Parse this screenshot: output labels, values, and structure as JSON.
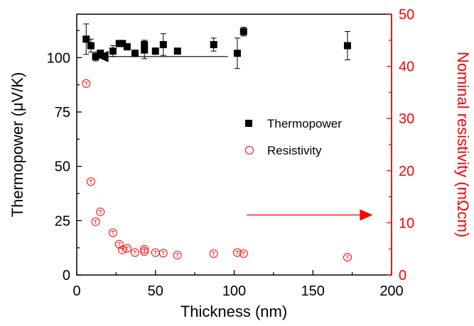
{
  "chart_data": {
    "type": "scatter",
    "xlabel": "Thickness (nm)",
    "ylabel_left": "Thermopower (μV/K)",
    "ylabel_right": "Nominal resistivity (mΩcm)",
    "xlim": [
      0,
      200
    ],
    "ylim_left": [
      0,
      120
    ],
    "ylim_right": [
      0,
      50
    ],
    "x_ticks": [
      0,
      50,
      100,
      150,
      200
    ],
    "y_left_ticks": [
      0,
      25,
      50,
      75,
      100
    ],
    "y_right_ticks": [
      0,
      10,
      20,
      30,
      40,
      50
    ],
    "grid": false,
    "legend_position": "center-right",
    "series": [
      {
        "name": "Thermopower",
        "axis": "left",
        "marker": "filled-square",
        "color": "#000000",
        "points": [
          {
            "x": 6,
            "y": 108.5,
            "err": 7
          },
          {
            "x": 9,
            "y": 105.5,
            "err": 3
          },
          {
            "x": 12,
            "y": 100.5,
            "err": 2
          },
          {
            "x": 15,
            "y": 102,
            "err": 1.5
          },
          {
            "x": 23,
            "y": 103,
            "err": 2.5
          },
          {
            "x": 27,
            "y": 106.5,
            "err": 1
          },
          {
            "x": 29,
            "y": 106.5,
            "err": 1
          },
          {
            "x": 32,
            "y": 105,
            "err": 1.5
          },
          {
            "x": 37,
            "y": 102,
            "err": 1.5
          },
          {
            "x": 43,
            "y": 103.5,
            "err": 4
          },
          {
            "x": 43,
            "y": 106,
            "err": 2
          },
          {
            "x": 50,
            "y": 103,
            "err": 1.5
          },
          {
            "x": 55,
            "y": 106,
            "err": 5
          },
          {
            "x": 64,
            "y": 103,
            "err": 1
          },
          {
            "x": 87,
            "y": 106,
            "err": 3
          },
          {
            "x": 102,
            "y": 102,
            "err": 7
          },
          {
            "x": 106,
            "y": 112,
            "err": 2
          },
          {
            "x": 172,
            "y": 105.5,
            "err": 6.5
          }
        ]
      },
      {
        "name": "Resistivity",
        "axis": "right",
        "marker": "open-circle",
        "color": "#ff0000",
        "points": [
          {
            "x": 6,
            "y": 36.7
          },
          {
            "x": 9,
            "y": 17.9
          },
          {
            "x": 12,
            "y": 10.2
          },
          {
            "x": 15,
            "y": 12.1
          },
          {
            "x": 23,
            "y": 8.1
          },
          {
            "x": 27,
            "y": 5.9
          },
          {
            "x": 29,
            "y": 4.8
          },
          {
            "x": 32,
            "y": 5.1
          },
          {
            "x": 37,
            "y": 4.3
          },
          {
            "x": 43,
            "y": 4.5
          },
          {
            "x": 43,
            "y": 4.9
          },
          {
            "x": 50,
            "y": 4.3
          },
          {
            "x": 55,
            "y": 4.2
          },
          {
            "x": 64,
            "y": 3.8
          },
          {
            "x": 87,
            "y": 4.1
          },
          {
            "x": 102,
            "y": 4.3
          },
          {
            "x": 106,
            "y": 4.1
          },
          {
            "x": 172,
            "y": 3.4
          }
        ]
      }
    ],
    "annotations": [
      {
        "type": "arrow",
        "direction": "left",
        "color": "#000000",
        "from": [
          96,
          100.5
        ],
        "to": [
          12,
          100.5
        ],
        "axis": "left"
      },
      {
        "type": "arrow",
        "direction": "right",
        "color": "#ff0000",
        "from": [
          108,
          11.5
        ],
        "to": [
          188,
          11.5
        ],
        "axis": "right"
      }
    ]
  }
}
